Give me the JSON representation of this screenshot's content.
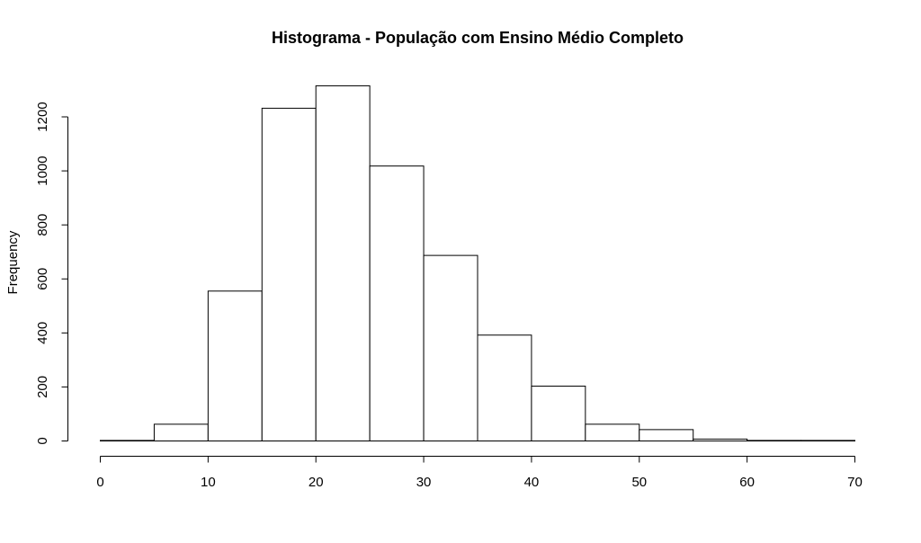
{
  "chart_data": {
    "type": "bar",
    "title": "Histograma - População com Ensino Médio Completo",
    "xlabel": "",
    "ylabel": "Frequency",
    "bins": [
      {
        "start": 0,
        "end": 5,
        "value": 2
      },
      {
        "start": 5,
        "end": 10,
        "value": 62
      },
      {
        "start": 10,
        "end": 15,
        "value": 555
      },
      {
        "start": 15,
        "end": 20,
        "value": 1232
      },
      {
        "start": 20,
        "end": 25,
        "value": 1315
      },
      {
        "start": 25,
        "end": 30,
        "value": 1018
      },
      {
        "start": 30,
        "end": 35,
        "value": 687
      },
      {
        "start": 35,
        "end": 40,
        "value": 392
      },
      {
        "start": 40,
        "end": 45,
        "value": 203
      },
      {
        "start": 45,
        "end": 50,
        "value": 62
      },
      {
        "start": 50,
        "end": 55,
        "value": 42
      },
      {
        "start": 55,
        "end": 60,
        "value": 7
      },
      {
        "start": 60,
        "end": 65,
        "value": 2
      },
      {
        "start": 65,
        "end": 70,
        "value": 2
      }
    ],
    "xlim": [
      0,
      70
    ],
    "ylim": [
      0,
      1315
    ],
    "x_ticks": [
      "0",
      "10",
      "20",
      "30",
      "40",
      "50",
      "60",
      "70"
    ],
    "y_ticks": [
      "0",
      "200",
      "400",
      "600",
      "800",
      "1000",
      "1200"
    ],
    "grid": false,
    "colors": {
      "bar_fill": "#ffffff",
      "bar_stroke": "#000000"
    }
  }
}
